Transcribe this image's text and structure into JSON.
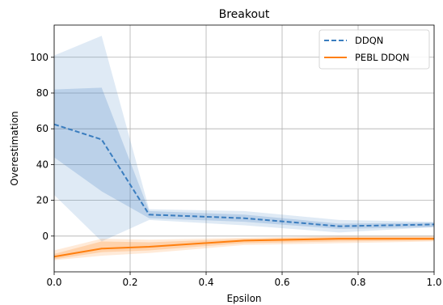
{
  "chart_data": {
    "type": "line",
    "title": "Breakout",
    "xlabel": "Epsilon",
    "ylabel": "Overestimation",
    "xlim": [
      0.0,
      1.0
    ],
    "ylim": [
      -20,
      118
    ],
    "xticks": [
      0.0,
      0.2,
      0.4,
      0.6,
      0.8,
      1.0
    ],
    "xtick_labels": [
      "0.0",
      "0.2",
      "0.4",
      "0.6",
      "0.8",
      "1.0"
    ],
    "yticks": [
      0,
      20,
      40,
      60,
      80,
      100
    ],
    "ytick_labels": [
      "0",
      "20",
      "40",
      "60",
      "80",
      "100"
    ],
    "grid": true,
    "legend_position": "top-right",
    "x": [
      0.0,
      0.125,
      0.25,
      0.5,
      0.75,
      1.0
    ],
    "series": [
      {
        "name": "DDQN",
        "color": "#3a7dbf",
        "style": "dashed",
        "values": [
          62.5,
          54,
          12,
          10,
          5.5,
          6.5
        ],
        "band_inner": {
          "lower": [
            44,
            25,
            10,
            8,
            4,
            5
          ],
          "upper": [
            82,
            83,
            14,
            12,
            7,
            7.5
          ]
        },
        "band_outer": {
          "lower": [
            23,
            -3,
            9,
            6,
            2,
            5
          ],
          "upper": [
            101,
            112,
            15,
            14,
            9,
            8
          ]
        }
      },
      {
        "name": "PEBL DDQN",
        "color": "#ff7f0e",
        "style": "solid",
        "values": [
          -11.5,
          -7,
          -6,
          -2.5,
          -1.5,
          -1.5
        ],
        "band_inner": {
          "lower": [
            -13,
            -9,
            -8,
            -4,
            -3,
            -2.5
          ],
          "upper": [
            -10,
            -3,
            -3.5,
            -1.5,
            -0.5,
            -0.5
          ]
        },
        "band_outer": {
          "lower": [
            -13.5,
            -11,
            -9.5,
            -5,
            -4,
            -3
          ],
          "upper": [
            -8,
            -1.5,
            -2,
            -1,
            0,
            0
          ]
        }
      }
    ]
  }
}
